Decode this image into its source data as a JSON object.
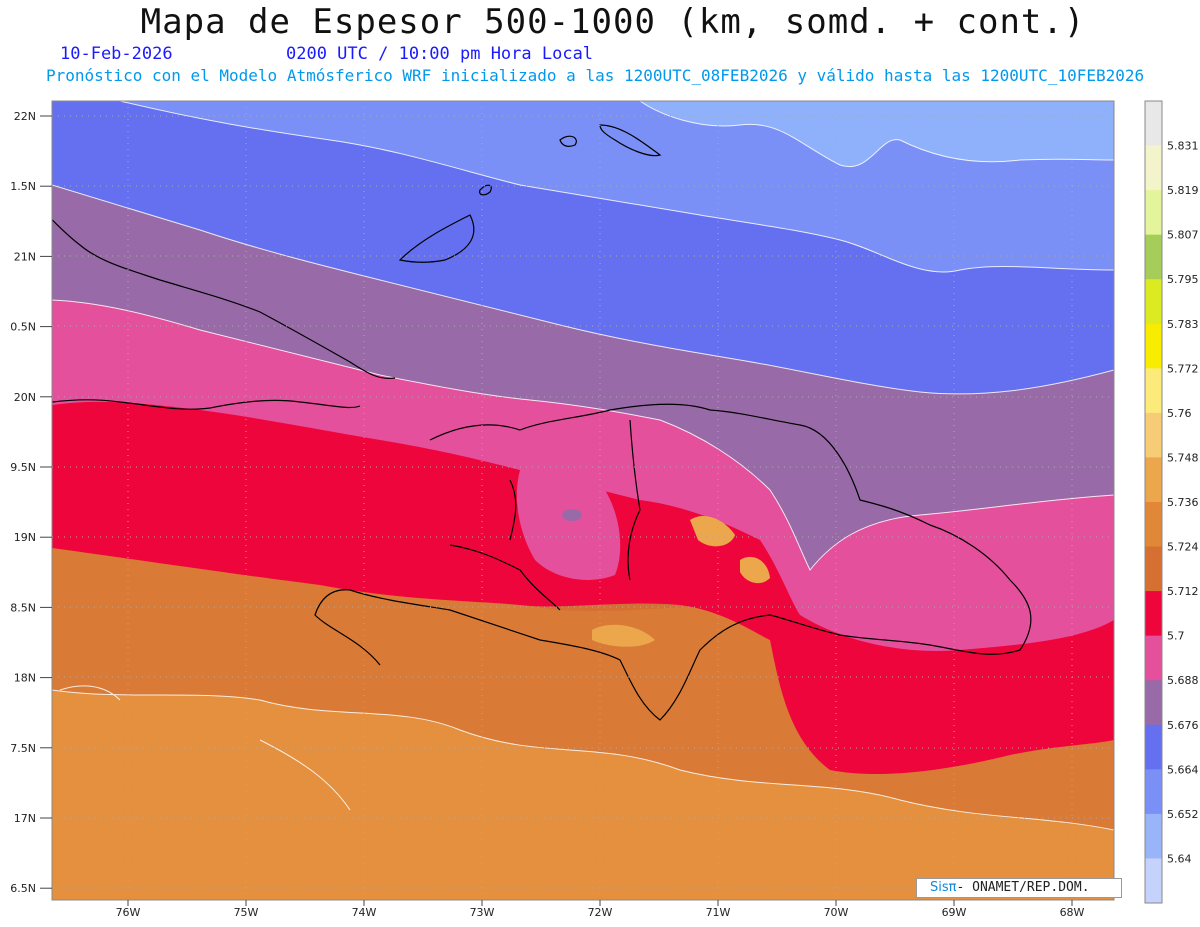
{
  "header": {
    "title": "Mapa de Espesor 500-1000 (km, somd. + cont.)",
    "date": "10-Feb-2026",
    "time": "0200 UTC / 10:00 pm Hora Local",
    "subtitle": "Pronóstico con el Modelo Atmósferico WRF inicializado a las 1200UTC_08FEB2026 y válido hasta las  1200UTC_10FEB2026"
  },
  "axes": {
    "lat_labels": [
      "22N",
      "1.5N",
      "21N",
      "0.5N",
      "20N",
      "9.5N",
      "19N",
      "8.5N",
      "18N",
      "7.5N",
      "17N",
      "6.5N"
    ],
    "lon_labels": [
      "76W",
      "75W",
      "74W",
      "73W",
      "72W",
      "71W",
      "70W",
      "69W",
      "68W"
    ]
  },
  "colorbar": {
    "levels": [
      "5.831",
      "5.819",
      "5.807",
      "5.795",
      "5.783",
      "5.772",
      "5.76",
      "5.748",
      "5.736",
      "5.724",
      "5.712",
      "5.7",
      "5.688",
      "5.676",
      "5.664",
      "5.652",
      "5.64"
    ],
    "colors": [
      "#e8e8e8",
      "#f4f4cc",
      "#e4f49a",
      "#a6cc5a",
      "#dcea22",
      "#f8ec00",
      "#fceb7a",
      "#f6cc76",
      "#eca64c",
      "#e08838",
      "#d67032",
      "#ee053c",
      "#e4509c",
      "#996aa8",
      "#6470f0",
      "#7a90f6",
      "#9ab4fa",
      "#c4d2fc"
    ]
  },
  "credit": {
    "brand": "Sisπ",
    "text": "- ONAMET/REP.DOM."
  },
  "colors": {
    "deep_red": "#ee053c",
    "pink": "#e4509c",
    "purple": "#996aa8",
    "blue": "#6470f0",
    "light_blue": "#7a90f6",
    "pale_blue": "#8fb0fa",
    "orange_dark": "#d67032",
    "orange": "#e08838",
    "orange_light": "#e4903e"
  }
}
